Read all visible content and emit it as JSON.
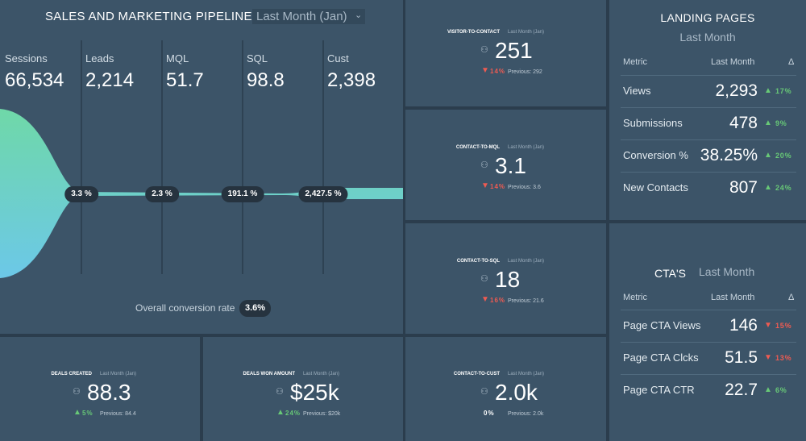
{
  "pipeline": {
    "title": "SALES AND MARKETING PIPELINE",
    "period": "Last Month (Jan)",
    "stages": [
      {
        "label": "Sessions",
        "value": "66,534"
      },
      {
        "label": "Leads",
        "value": "2,214"
      },
      {
        "label": "MQL",
        "value": "51.7"
      },
      {
        "label": "SQL",
        "value": "98.8"
      },
      {
        "label": "Cust",
        "value": "2,398"
      }
    ],
    "rates": [
      "3.3 %",
      "2.3 %",
      "191.1 %",
      "2,427.5 %"
    ],
    "overall_label": "Overall conversion rate",
    "overall_value": "3.6%"
  },
  "widgets": [
    {
      "title": "VISITOR-TO-CONTACT",
      "period": "Last Month (Jan)",
      "value": "251",
      "change": "14%",
      "trend": "down",
      "previous": "Previous: 292"
    },
    {
      "title": "CONTACT-TO-MQL",
      "period": "Last Month (Jan)",
      "value": "3.1",
      "change": "14%",
      "trend": "down",
      "previous": "Previous: 3.6"
    },
    {
      "title": "CONTACT-TO-SQL",
      "period": "Last Month (Jan)",
      "value": "18",
      "change": "16%",
      "trend": "down",
      "previous": "Previous: 21.6"
    },
    {
      "title": "CONTACT-TO-CUST",
      "period": "Last Month (Jan)",
      "value": "2.0k",
      "change": "0%",
      "trend": "flat",
      "previous": "Previous: 2.0k"
    }
  ],
  "deals": [
    {
      "title": "DEALS CREATED",
      "period": "Last Month (Jan)",
      "value": "88.3",
      "change": "5%",
      "trend": "up",
      "previous": "Previous: 84.4"
    },
    {
      "title": "DEALS WON AMOUNT",
      "period": "Last Month (Jan)",
      "value": "$25k",
      "change": "24%",
      "trend": "up",
      "previous": "Previous: $20k"
    }
  ],
  "landing_pages": {
    "title": "LANDING PAGES",
    "period": "Last Month",
    "headers": [
      "Metric",
      "Last Month",
      "Δ"
    ],
    "rows": [
      [
        "Views",
        "2,293",
        "17%"
      ],
      [
        "Submissions",
        "478",
        "9%"
      ],
      [
        "Conversion %",
        "38.25%",
        "20%"
      ],
      [
        "New Contacts",
        "807",
        "24%"
      ]
    ],
    "trends": [
      "up",
      "up",
      "up",
      "up"
    ]
  },
  "ctas": {
    "title": "CTA'S",
    "period": "Last Month",
    "headers": [
      "Metric",
      "Last Month",
      "Δ"
    ],
    "rows": [
      [
        "Page CTA Views",
        "146",
        "15%"
      ],
      [
        "Page CTA Clcks",
        "51.5",
        "13%"
      ],
      [
        "Page CTA CTR",
        "22.7",
        "6%"
      ]
    ],
    "trends": [
      "down",
      "down",
      "up"
    ]
  }
}
